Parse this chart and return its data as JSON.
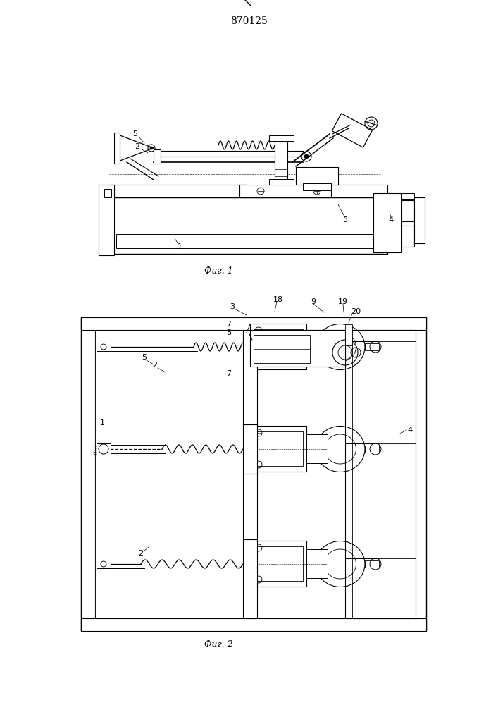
{
  "title": "870125",
  "fig1_label": "Фиг. 1",
  "fig2_label": "Фиг. 2",
  "bg_color": "#ffffff",
  "line_color": "#000000",
  "title_fontsize": 10,
  "label_fontsize": 9,
  "anno_fontsize": 8
}
